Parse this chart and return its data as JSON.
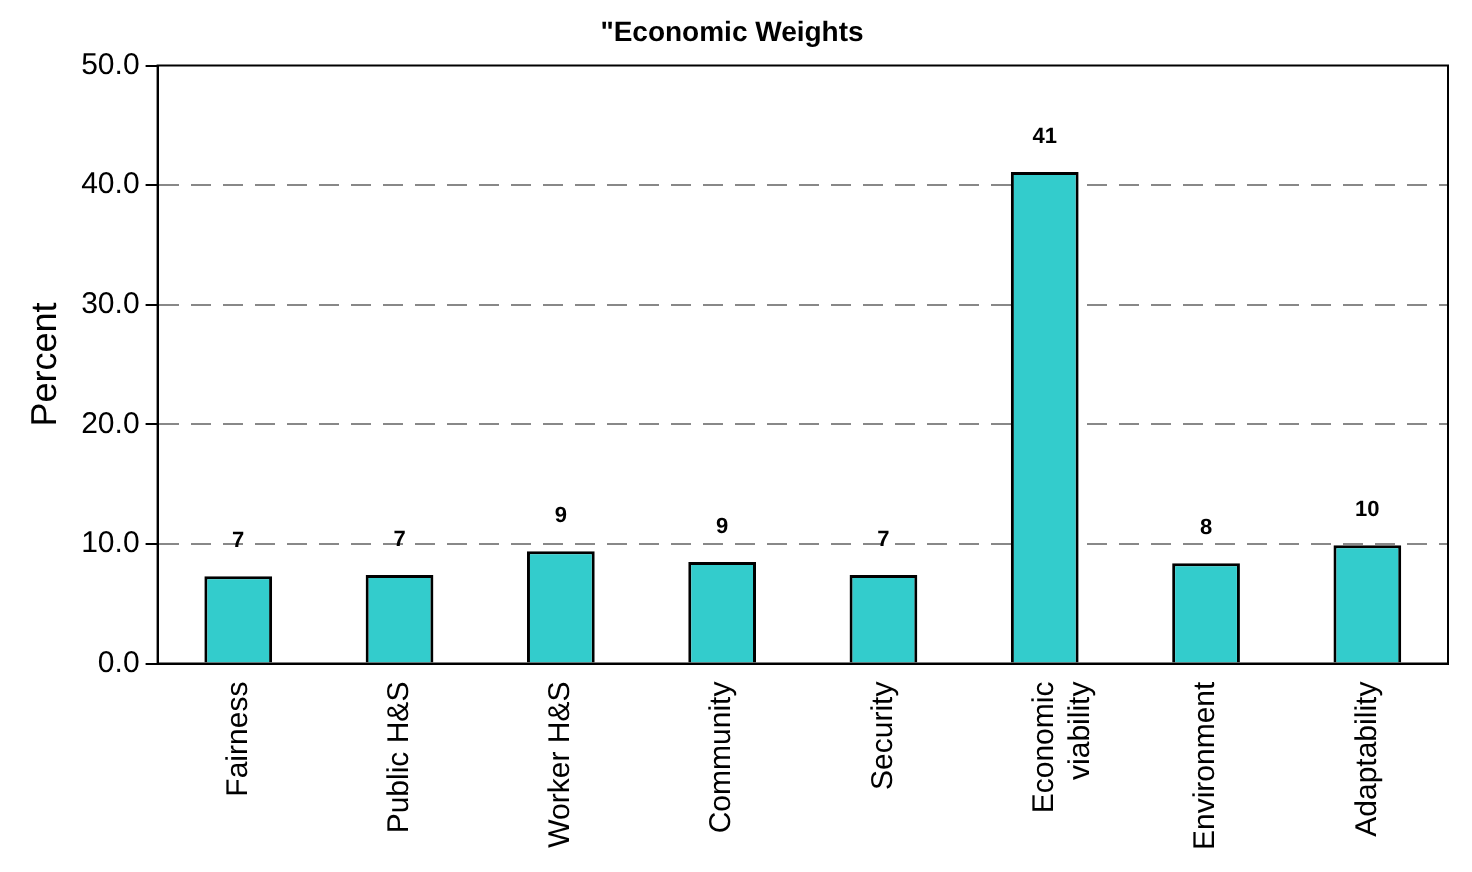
{
  "chart_data": {
    "type": "bar",
    "title": "\"Economic Weights",
    "ylabel": "Percent",
    "categories": [
      "Fairness",
      "Public H&S",
      "Worker H&S",
      "Community",
      "Security",
      "Economic viability",
      "Environment",
      "Adaptability"
    ],
    "values": [
      7.3,
      7.4,
      9.4,
      8.5,
      7.4,
      41.1,
      8.4,
      9.9
    ],
    "value_labels": [
      "7",
      "7",
      "9",
      "9",
      "7",
      "41",
      "8",
      "10"
    ],
    "color": "#33cccc",
    "ylim": [
      0,
      50
    ],
    "yticks": [
      {
        "value": 0,
        "label": "0.0"
      },
      {
        "value": 10,
        "label": "10.0"
      },
      {
        "value": 20,
        "label": "20.0"
      },
      {
        "value": 30,
        "label": "30.0"
      },
      {
        "value": 40,
        "label": "40.0"
      },
      {
        "value": 50,
        "label": "50.0"
      }
    ],
    "grid": "y",
    "legend": false
  }
}
